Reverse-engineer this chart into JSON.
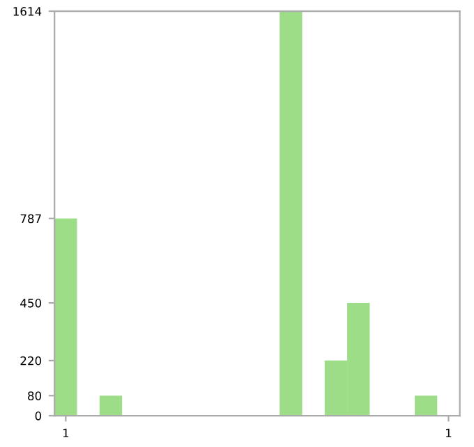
{
  "chart_data": {
    "type": "bar",
    "categories": [
      "1",
      null,
      null,
      null,
      null,
      null,
      null,
      null,
      null,
      null,
      null,
      null,
      null,
      null,
      null,
      null,
      null,
      "1"
    ],
    "values": [
      787,
      0,
      80,
      0,
      0,
      0,
      0,
      0,
      0,
      0,
      1614,
      0,
      220,
      450,
      0,
      0,
      80,
      0
    ],
    "color": "#9ddd88",
    "ylim": [
      0,
      1614
    ],
    "yticks": [
      0,
      80,
      220,
      450,
      787,
      1614
    ],
    "grid": false
  }
}
